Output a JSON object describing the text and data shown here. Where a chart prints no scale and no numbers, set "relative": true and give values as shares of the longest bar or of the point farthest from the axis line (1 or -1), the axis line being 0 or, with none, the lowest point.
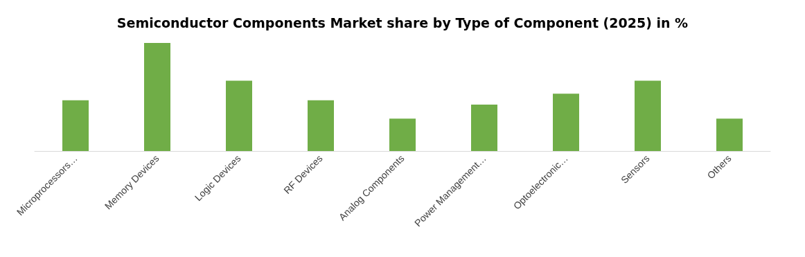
{
  "chart_data": {
    "type": "bar",
    "title": "Semiconductor Components Market share by Type of Component (2025) in %",
    "categories": [
      "Microprocessors…",
      "Memory Devices",
      "Logic Devices",
      "RF Devices",
      "Analog Components",
      "Power Management…",
      "Optoelectronic…",
      "Sensors",
      "Others"
    ],
    "values": [
      0.47,
      1,
      0.65,
      0.47,
      0.3,
      0.43,
      0.53,
      0.65,
      0.3
    ],
    "color": "#70ad47",
    "relative": true
  }
}
